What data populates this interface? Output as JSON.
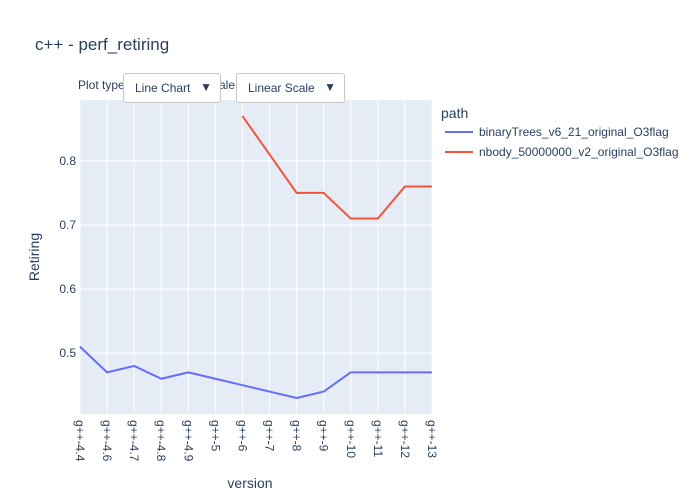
{
  "title": "c++ - perf_retiring",
  "controls": {
    "plot_type_label": "Plot type:",
    "plot_type_value": "Line Chart",
    "scale_label": "Scale:",
    "scale_value": "Linear Scale",
    "dropdown_arrow": "▼"
  },
  "colors": {
    "plot_bg": "#e5ecf6",
    "grid": "#ffffff",
    "text": "#2a3f5f",
    "series_1": "#636efa",
    "series_2": "#ef553b"
  },
  "chart_data": {
    "type": "line",
    "title": "c++ - perf_retiring",
    "xlabel": "version",
    "ylabel": "Retiring",
    "categories": [
      "g++-4.4",
      "g++-4.6",
      "g++-4.7",
      "g++-4.8",
      "g++-4.9",
      "g++-5",
      "g++-6",
      "g++-7",
      "g++-8",
      "g++-9",
      "g++-10",
      "g++-11",
      "g++-12",
      "g++-13"
    ],
    "ylim": [
      0.405,
      0.895
    ],
    "yticks": [
      0.5,
      0.6,
      0.7,
      0.8
    ],
    "ytick_labels": [
      "0.5",
      "0.6",
      "0.7",
      "0.8"
    ],
    "grid": true,
    "legend_title": "path",
    "legend_position": "right",
    "series": [
      {
        "name": "binaryTrees_v6_21_original_O3flag",
        "values": [
          0.51,
          0.47,
          0.48,
          0.46,
          0.47,
          0.46,
          0.45,
          0.44,
          0.43,
          0.44,
          0.47,
          0.47,
          0.47,
          0.47
        ]
      },
      {
        "name": "nbody_50000000_v2_original_O3flag",
        "values": [
          null,
          null,
          null,
          null,
          null,
          null,
          0.87,
          0.81,
          0.75,
          0.75,
          0.71,
          0.71,
          0.76,
          0.76
        ]
      }
    ]
  }
}
